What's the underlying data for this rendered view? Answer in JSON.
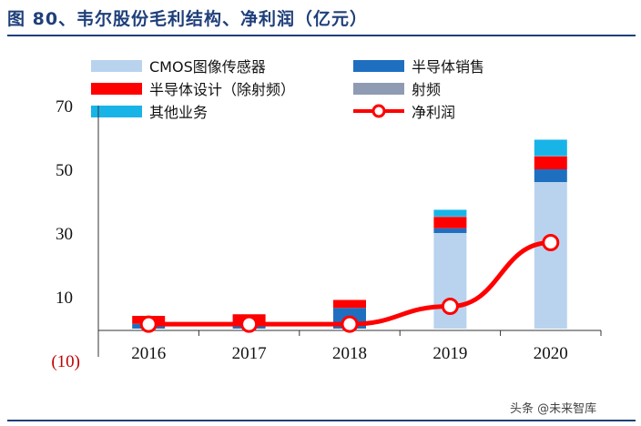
{
  "title": "图 80、韦尔股份毛利结构、净利润（亿元）",
  "watermark": "头条 @未来智库",
  "chart_data": {
    "type": "bar",
    "stacked": true,
    "categories": [
      "2016",
      "2017",
      "2018",
      "2019",
      "2020"
    ],
    "y_ticks": [
      "70",
      "50",
      "30",
      "10",
      "(10)"
    ],
    "y_tick_values": [
      70,
      50,
      30,
      10,
      -10
    ],
    "ylim": [
      -10,
      70
    ],
    "series": [
      {
        "name": "CMOS图像传感器",
        "type": "bar",
        "color": "#b9d3ee",
        "values": [
          0,
          0,
          0,
          30,
          46
        ]
      },
      {
        "name": "半导体销售",
        "type": "bar",
        "color": "#1f6fc0",
        "values": [
          1.5,
          1.5,
          6.5,
          1.5,
          4
        ]
      },
      {
        "name": "半导体设计（除射频）",
        "type": "bar",
        "color": "#ff0000",
        "values": [
          2.5,
          3,
          2.5,
          3.5,
          4
        ]
      },
      {
        "name": "射频",
        "type": "bar",
        "color": "#8f9bb3",
        "values": [
          0,
          0,
          0,
          0.3,
          0.3
        ]
      },
      {
        "name": "其他业务",
        "type": "bar",
        "color": "#18b4e8",
        "values": [
          0,
          0,
          0,
          2,
          5
        ]
      },
      {
        "name": "净利润",
        "type": "line",
        "color": "#ff0000",
        "values": [
          1.4,
          1.4,
          1.4,
          7,
          27
        ]
      }
    ],
    "legend_position": "top"
  }
}
